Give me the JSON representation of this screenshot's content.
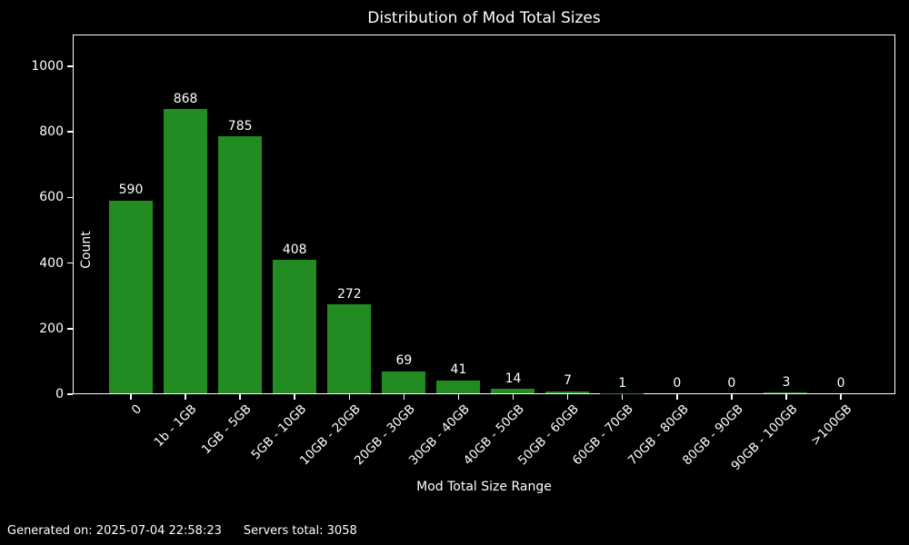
{
  "chart_data": {
    "type": "bar",
    "title": "Distribution of Mod Total Sizes",
    "xlabel": "Mod Total Size Range",
    "ylabel": "Count",
    "categories": [
      "0",
      "1b - 1GB",
      "1GB - 5GB",
      "5GB - 10GB",
      "10GB - 20GB",
      "20GB - 30GB",
      "30GB - 40GB",
      "40GB - 50GB",
      "50GB - 60GB",
      "60GB - 70GB",
      "70GB - 80GB",
      "80GB - 90GB",
      "90GB - 100GB",
      ">100GB"
    ],
    "values": [
      590,
      868,
      785,
      408,
      272,
      69,
      41,
      14,
      7,
      1,
      0,
      0,
      3,
      0
    ],
    "value_labels_shown": true,
    "yticks": [
      0,
      200,
      400,
      600,
      800,
      1000
    ],
    "ylim": [
      0,
      1097
    ],
    "xtick_rotation_deg": 45,
    "grid": false,
    "legend": "none",
    "colors": {
      "bar": "#228B22",
      "background": "#000000",
      "text": "#ffffff",
      "axis": "#ffffff"
    }
  },
  "footer": {
    "generated": "Generated on: 2025-07-04 22:58:23",
    "servers_total": "Servers total: 3058"
  }
}
